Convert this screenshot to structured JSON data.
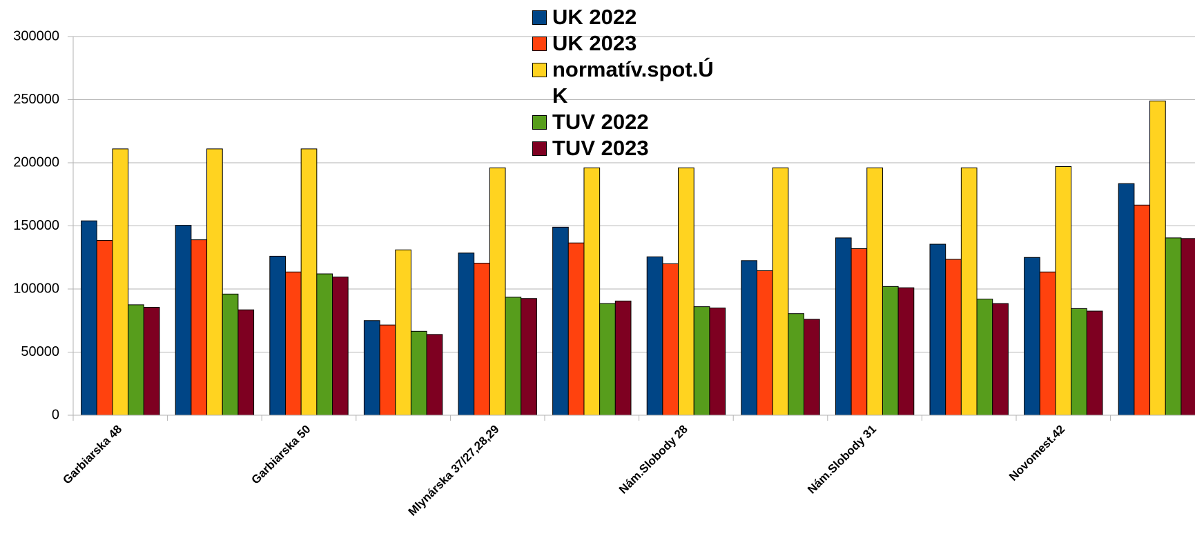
{
  "chart_data": {
    "type": "bar",
    "categories": [
      "Garbiarska 48",
      null,
      "Garbiarska 50",
      null,
      "Mlynárska 37/27,28,29",
      null,
      "Nám.Slobody 28",
      null,
      "Nám.Slobody 31",
      null,
      "Novomest.42",
      null
    ],
    "series": [
      {
        "name": "UK 2022",
        "color": "#004586",
        "values": [
          154000,
          150500,
          126000,
          75000,
          128500,
          149000,
          125500,
          122500,
          140500,
          135500,
          125000,
          183500
        ]
      },
      {
        "name": "UK 2023",
        "color": "#ff420e",
        "values": [
          138500,
          139000,
          113500,
          71500,
          120500,
          136500,
          120000,
          114500,
          132000,
          123500,
          113500,
          166500
        ]
      },
      {
        "name": "normatív.spot.ÚK",
        "color": "#ffd320",
        "values": [
          211000,
          211000,
          211000,
          131000,
          196000,
          196000,
          196000,
          196000,
          196000,
          196000,
          197000,
          249000
        ]
      },
      {
        "name": "TUV 2022",
        "color": "#579d1c",
        "values": [
          87500,
          96000,
          112000,
          66500,
          93500,
          88500,
          86000,
          80500,
          102000,
          92000,
          84500,
          140500
        ]
      },
      {
        "name": "TUV 2023",
        "color": "#7e0021",
        "values": [
          85500,
          83500,
          109500,
          64000,
          92500,
          90500,
          85000,
          76000,
          101000,
          88500,
          82500,
          140000
        ]
      }
    ],
    "ylim": [
      0,
      300000
    ],
    "yticks": [
      0,
      50000,
      100000,
      150000,
      200000,
      250000,
      300000
    ],
    "grid": true
  }
}
